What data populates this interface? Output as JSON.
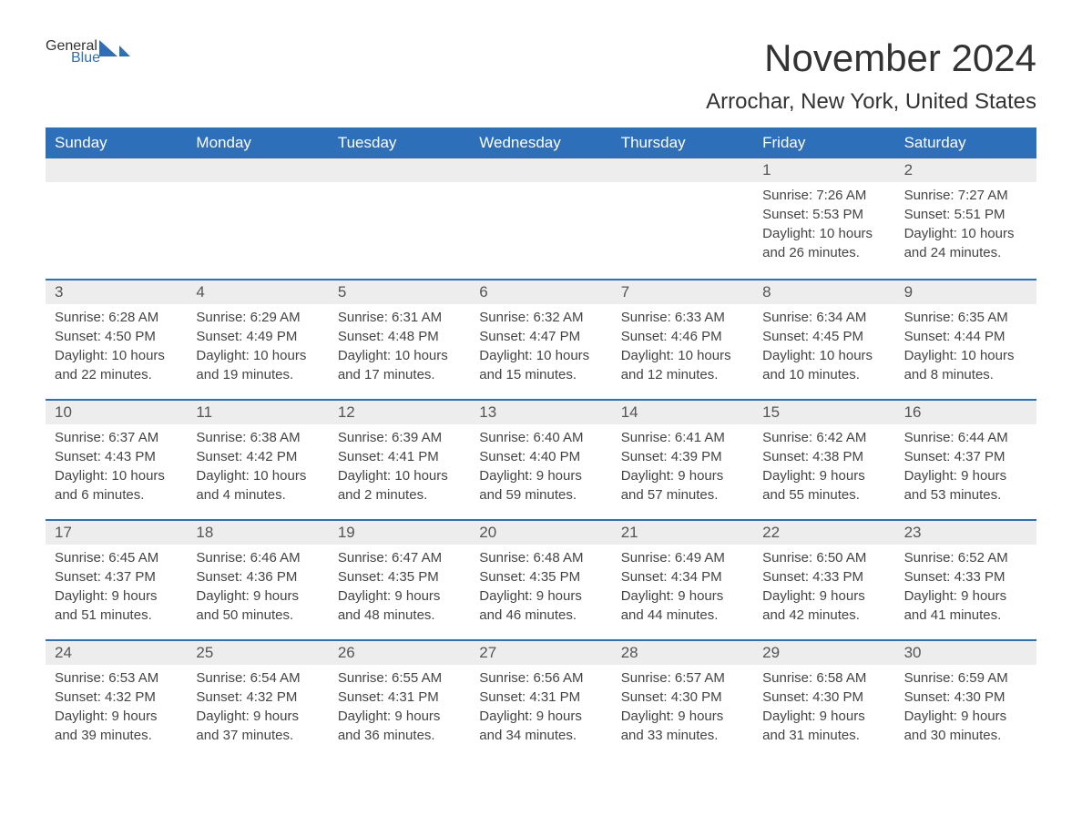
{
  "logo": {
    "text1": "General",
    "text2": "Blue",
    "color1": "#333333",
    "color2": "#2d6fb8"
  },
  "header": {
    "month_title": "November 2024",
    "location": "Arrochar, New York, United States"
  },
  "styling": {
    "header_bg": "#2d6fb8",
    "header_fg": "#ffffff",
    "day_bar_bg": "#ededed",
    "row_border_color": "#2d6fb8",
    "text_color": "#444444",
    "background": "#ffffff",
    "title_fontsize": 42,
    "location_fontsize": 24,
    "weekday_fontsize": 17,
    "daynum_fontsize": 17,
    "content_fontsize": 15
  },
  "weekdays": [
    "Sunday",
    "Monday",
    "Tuesday",
    "Wednesday",
    "Thursday",
    "Friday",
    "Saturday"
  ],
  "weeks": [
    [
      {
        "day": "",
        "sunrise": "",
        "sunset": "",
        "daylight1": "",
        "daylight2": ""
      },
      {
        "day": "",
        "sunrise": "",
        "sunset": "",
        "daylight1": "",
        "daylight2": ""
      },
      {
        "day": "",
        "sunrise": "",
        "sunset": "",
        "daylight1": "",
        "daylight2": ""
      },
      {
        "day": "",
        "sunrise": "",
        "sunset": "",
        "daylight1": "",
        "daylight2": ""
      },
      {
        "day": "",
        "sunrise": "",
        "sunset": "",
        "daylight1": "",
        "daylight2": ""
      },
      {
        "day": "1",
        "sunrise": "Sunrise: 7:26 AM",
        "sunset": "Sunset: 5:53 PM",
        "daylight1": "Daylight: 10 hours",
        "daylight2": "and 26 minutes."
      },
      {
        "day": "2",
        "sunrise": "Sunrise: 7:27 AM",
        "sunset": "Sunset: 5:51 PM",
        "daylight1": "Daylight: 10 hours",
        "daylight2": "and 24 minutes."
      }
    ],
    [
      {
        "day": "3",
        "sunrise": "Sunrise: 6:28 AM",
        "sunset": "Sunset: 4:50 PM",
        "daylight1": "Daylight: 10 hours",
        "daylight2": "and 22 minutes."
      },
      {
        "day": "4",
        "sunrise": "Sunrise: 6:29 AM",
        "sunset": "Sunset: 4:49 PM",
        "daylight1": "Daylight: 10 hours",
        "daylight2": "and 19 minutes."
      },
      {
        "day": "5",
        "sunrise": "Sunrise: 6:31 AM",
        "sunset": "Sunset: 4:48 PM",
        "daylight1": "Daylight: 10 hours",
        "daylight2": "and 17 minutes."
      },
      {
        "day": "6",
        "sunrise": "Sunrise: 6:32 AM",
        "sunset": "Sunset: 4:47 PM",
        "daylight1": "Daylight: 10 hours",
        "daylight2": "and 15 minutes."
      },
      {
        "day": "7",
        "sunrise": "Sunrise: 6:33 AM",
        "sunset": "Sunset: 4:46 PM",
        "daylight1": "Daylight: 10 hours",
        "daylight2": "and 12 minutes."
      },
      {
        "day": "8",
        "sunrise": "Sunrise: 6:34 AM",
        "sunset": "Sunset: 4:45 PM",
        "daylight1": "Daylight: 10 hours",
        "daylight2": "and 10 minutes."
      },
      {
        "day": "9",
        "sunrise": "Sunrise: 6:35 AM",
        "sunset": "Sunset: 4:44 PM",
        "daylight1": "Daylight: 10 hours",
        "daylight2": "and 8 minutes."
      }
    ],
    [
      {
        "day": "10",
        "sunrise": "Sunrise: 6:37 AM",
        "sunset": "Sunset: 4:43 PM",
        "daylight1": "Daylight: 10 hours",
        "daylight2": "and 6 minutes."
      },
      {
        "day": "11",
        "sunrise": "Sunrise: 6:38 AM",
        "sunset": "Sunset: 4:42 PM",
        "daylight1": "Daylight: 10 hours",
        "daylight2": "and 4 minutes."
      },
      {
        "day": "12",
        "sunrise": "Sunrise: 6:39 AM",
        "sunset": "Sunset: 4:41 PM",
        "daylight1": "Daylight: 10 hours",
        "daylight2": "and 2 minutes."
      },
      {
        "day": "13",
        "sunrise": "Sunrise: 6:40 AM",
        "sunset": "Sunset: 4:40 PM",
        "daylight1": "Daylight: 9 hours",
        "daylight2": "and 59 minutes."
      },
      {
        "day": "14",
        "sunrise": "Sunrise: 6:41 AM",
        "sunset": "Sunset: 4:39 PM",
        "daylight1": "Daylight: 9 hours",
        "daylight2": "and 57 minutes."
      },
      {
        "day": "15",
        "sunrise": "Sunrise: 6:42 AM",
        "sunset": "Sunset: 4:38 PM",
        "daylight1": "Daylight: 9 hours",
        "daylight2": "and 55 minutes."
      },
      {
        "day": "16",
        "sunrise": "Sunrise: 6:44 AM",
        "sunset": "Sunset: 4:37 PM",
        "daylight1": "Daylight: 9 hours",
        "daylight2": "and 53 minutes."
      }
    ],
    [
      {
        "day": "17",
        "sunrise": "Sunrise: 6:45 AM",
        "sunset": "Sunset: 4:37 PM",
        "daylight1": "Daylight: 9 hours",
        "daylight2": "and 51 minutes."
      },
      {
        "day": "18",
        "sunrise": "Sunrise: 6:46 AM",
        "sunset": "Sunset: 4:36 PM",
        "daylight1": "Daylight: 9 hours",
        "daylight2": "and 50 minutes."
      },
      {
        "day": "19",
        "sunrise": "Sunrise: 6:47 AM",
        "sunset": "Sunset: 4:35 PM",
        "daylight1": "Daylight: 9 hours",
        "daylight2": "and 48 minutes."
      },
      {
        "day": "20",
        "sunrise": "Sunrise: 6:48 AM",
        "sunset": "Sunset: 4:35 PM",
        "daylight1": "Daylight: 9 hours",
        "daylight2": "and 46 minutes."
      },
      {
        "day": "21",
        "sunrise": "Sunrise: 6:49 AM",
        "sunset": "Sunset: 4:34 PM",
        "daylight1": "Daylight: 9 hours",
        "daylight2": "and 44 minutes."
      },
      {
        "day": "22",
        "sunrise": "Sunrise: 6:50 AM",
        "sunset": "Sunset: 4:33 PM",
        "daylight1": "Daylight: 9 hours",
        "daylight2": "and 42 minutes."
      },
      {
        "day": "23",
        "sunrise": "Sunrise: 6:52 AM",
        "sunset": "Sunset: 4:33 PM",
        "daylight1": "Daylight: 9 hours",
        "daylight2": "and 41 minutes."
      }
    ],
    [
      {
        "day": "24",
        "sunrise": "Sunrise: 6:53 AM",
        "sunset": "Sunset: 4:32 PM",
        "daylight1": "Daylight: 9 hours",
        "daylight2": "and 39 minutes."
      },
      {
        "day": "25",
        "sunrise": "Sunrise: 6:54 AM",
        "sunset": "Sunset: 4:32 PM",
        "daylight1": "Daylight: 9 hours",
        "daylight2": "and 37 minutes."
      },
      {
        "day": "26",
        "sunrise": "Sunrise: 6:55 AM",
        "sunset": "Sunset: 4:31 PM",
        "daylight1": "Daylight: 9 hours",
        "daylight2": "and 36 minutes."
      },
      {
        "day": "27",
        "sunrise": "Sunrise: 6:56 AM",
        "sunset": "Sunset: 4:31 PM",
        "daylight1": "Daylight: 9 hours",
        "daylight2": "and 34 minutes."
      },
      {
        "day": "28",
        "sunrise": "Sunrise: 6:57 AM",
        "sunset": "Sunset: 4:30 PM",
        "daylight1": "Daylight: 9 hours",
        "daylight2": "and 33 minutes."
      },
      {
        "day": "29",
        "sunrise": "Sunrise: 6:58 AM",
        "sunset": "Sunset: 4:30 PM",
        "daylight1": "Daylight: 9 hours",
        "daylight2": "and 31 minutes."
      },
      {
        "day": "30",
        "sunrise": "Sunrise: 6:59 AM",
        "sunset": "Sunset: 4:30 PM",
        "daylight1": "Daylight: 9 hours",
        "daylight2": "and 30 minutes."
      }
    ]
  ]
}
